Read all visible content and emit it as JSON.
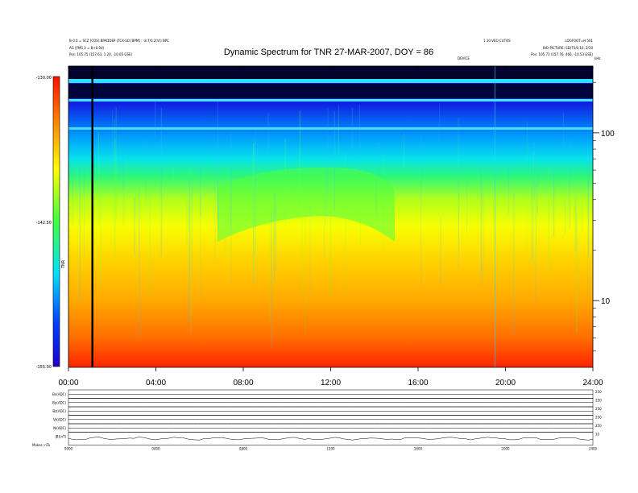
{
  "header": {
    "left_line1": "B-0.0 = SCZ [COS] BPADDEP (TCX-SO [BPM] : -8.7/0.2(V)) BPC",
    "left_line2": "AG (FMS 3 = B+0.0V)",
    "left_line3": "Pos:    105.75 (157.63, 1.20, -10.05 GSE)",
    "center_small": "1.10 VEO CUTOS",
    "right_line1": "LOGFOOT=H 501",
    "right_line2": "BIO-PICTURE: SD/75/0.10, 2/10",
    "right_line3": "Pos:    105.73 (157.76, 466, -10.53 GSE)",
    "top_mark": "DEVICE",
    "khz_unit": "kHz"
  },
  "chart_data": {
    "type": "heatmap",
    "title": "Dynamic Spectrum for TNR 27-MAR-2007, DOY = 86",
    "x": {
      "range": [
        "00:00",
        "24:00"
      ],
      "ticks": [
        "00:00",
        "04:00",
        "08:00",
        "12:00",
        "16:00",
        "20:00",
        "24:00"
      ]
    },
    "y": {
      "scale": "log",
      "unit": "kHz",
      "range": [
        4,
        250
      ],
      "ticks": [
        {
          "value": 10,
          "label": "10"
        },
        {
          "value": 100,
          "label": "100"
        }
      ]
    },
    "colorbar": {
      "label": "TNR",
      "ticks": [
        "-130.00",
        "-142.50",
        "-155.00"
      ],
      "colors": [
        "#1e00c8",
        "#0040ff",
        "#00e0ff",
        "#40ff40",
        "#ffff00",
        "#ff8000",
        "#ff1000"
      ]
    },
    "spectrum_levels_kHz": [
      {
        "freq": 250,
        "level": 0.05
      },
      {
        "freq": 150,
        "level": 0.08
      },
      {
        "freq": 100,
        "level": 0.25
      },
      {
        "freq": 70,
        "level": 0.35
      },
      {
        "freq": 55,
        "level": 0.45
      },
      {
        "freq": 40,
        "level": 0.6
      },
      {
        "freq": 28,
        "level": 0.66
      },
      {
        "freq": 18,
        "level": 0.72
      },
      {
        "freq": 10,
        "level": 0.78
      },
      {
        "freq": 6,
        "level": 0.86
      },
      {
        "freq": 4,
        "level": 0.97
      }
    ],
    "panels": [
      {
        "label": "Bx(ADC)",
        "right": "250"
      },
      {
        "label": "By(ADC)",
        "right": "250"
      },
      {
        "label": "Bz(ADC)",
        "right": "250"
      },
      {
        "label": "Vt(ADC)",
        "right": "250"
      },
      {
        "label": "Ni(ADC)",
        "right": "250"
      },
      {
        "label": "|B|(nT)",
        "right": "10"
      }
    ],
    "bottom_ticks": [
      "0000",
      "0400",
      "0800",
      "1200",
      "1600",
      "2000",
      "2400"
    ],
    "footer": "Makes: nTa"
  }
}
